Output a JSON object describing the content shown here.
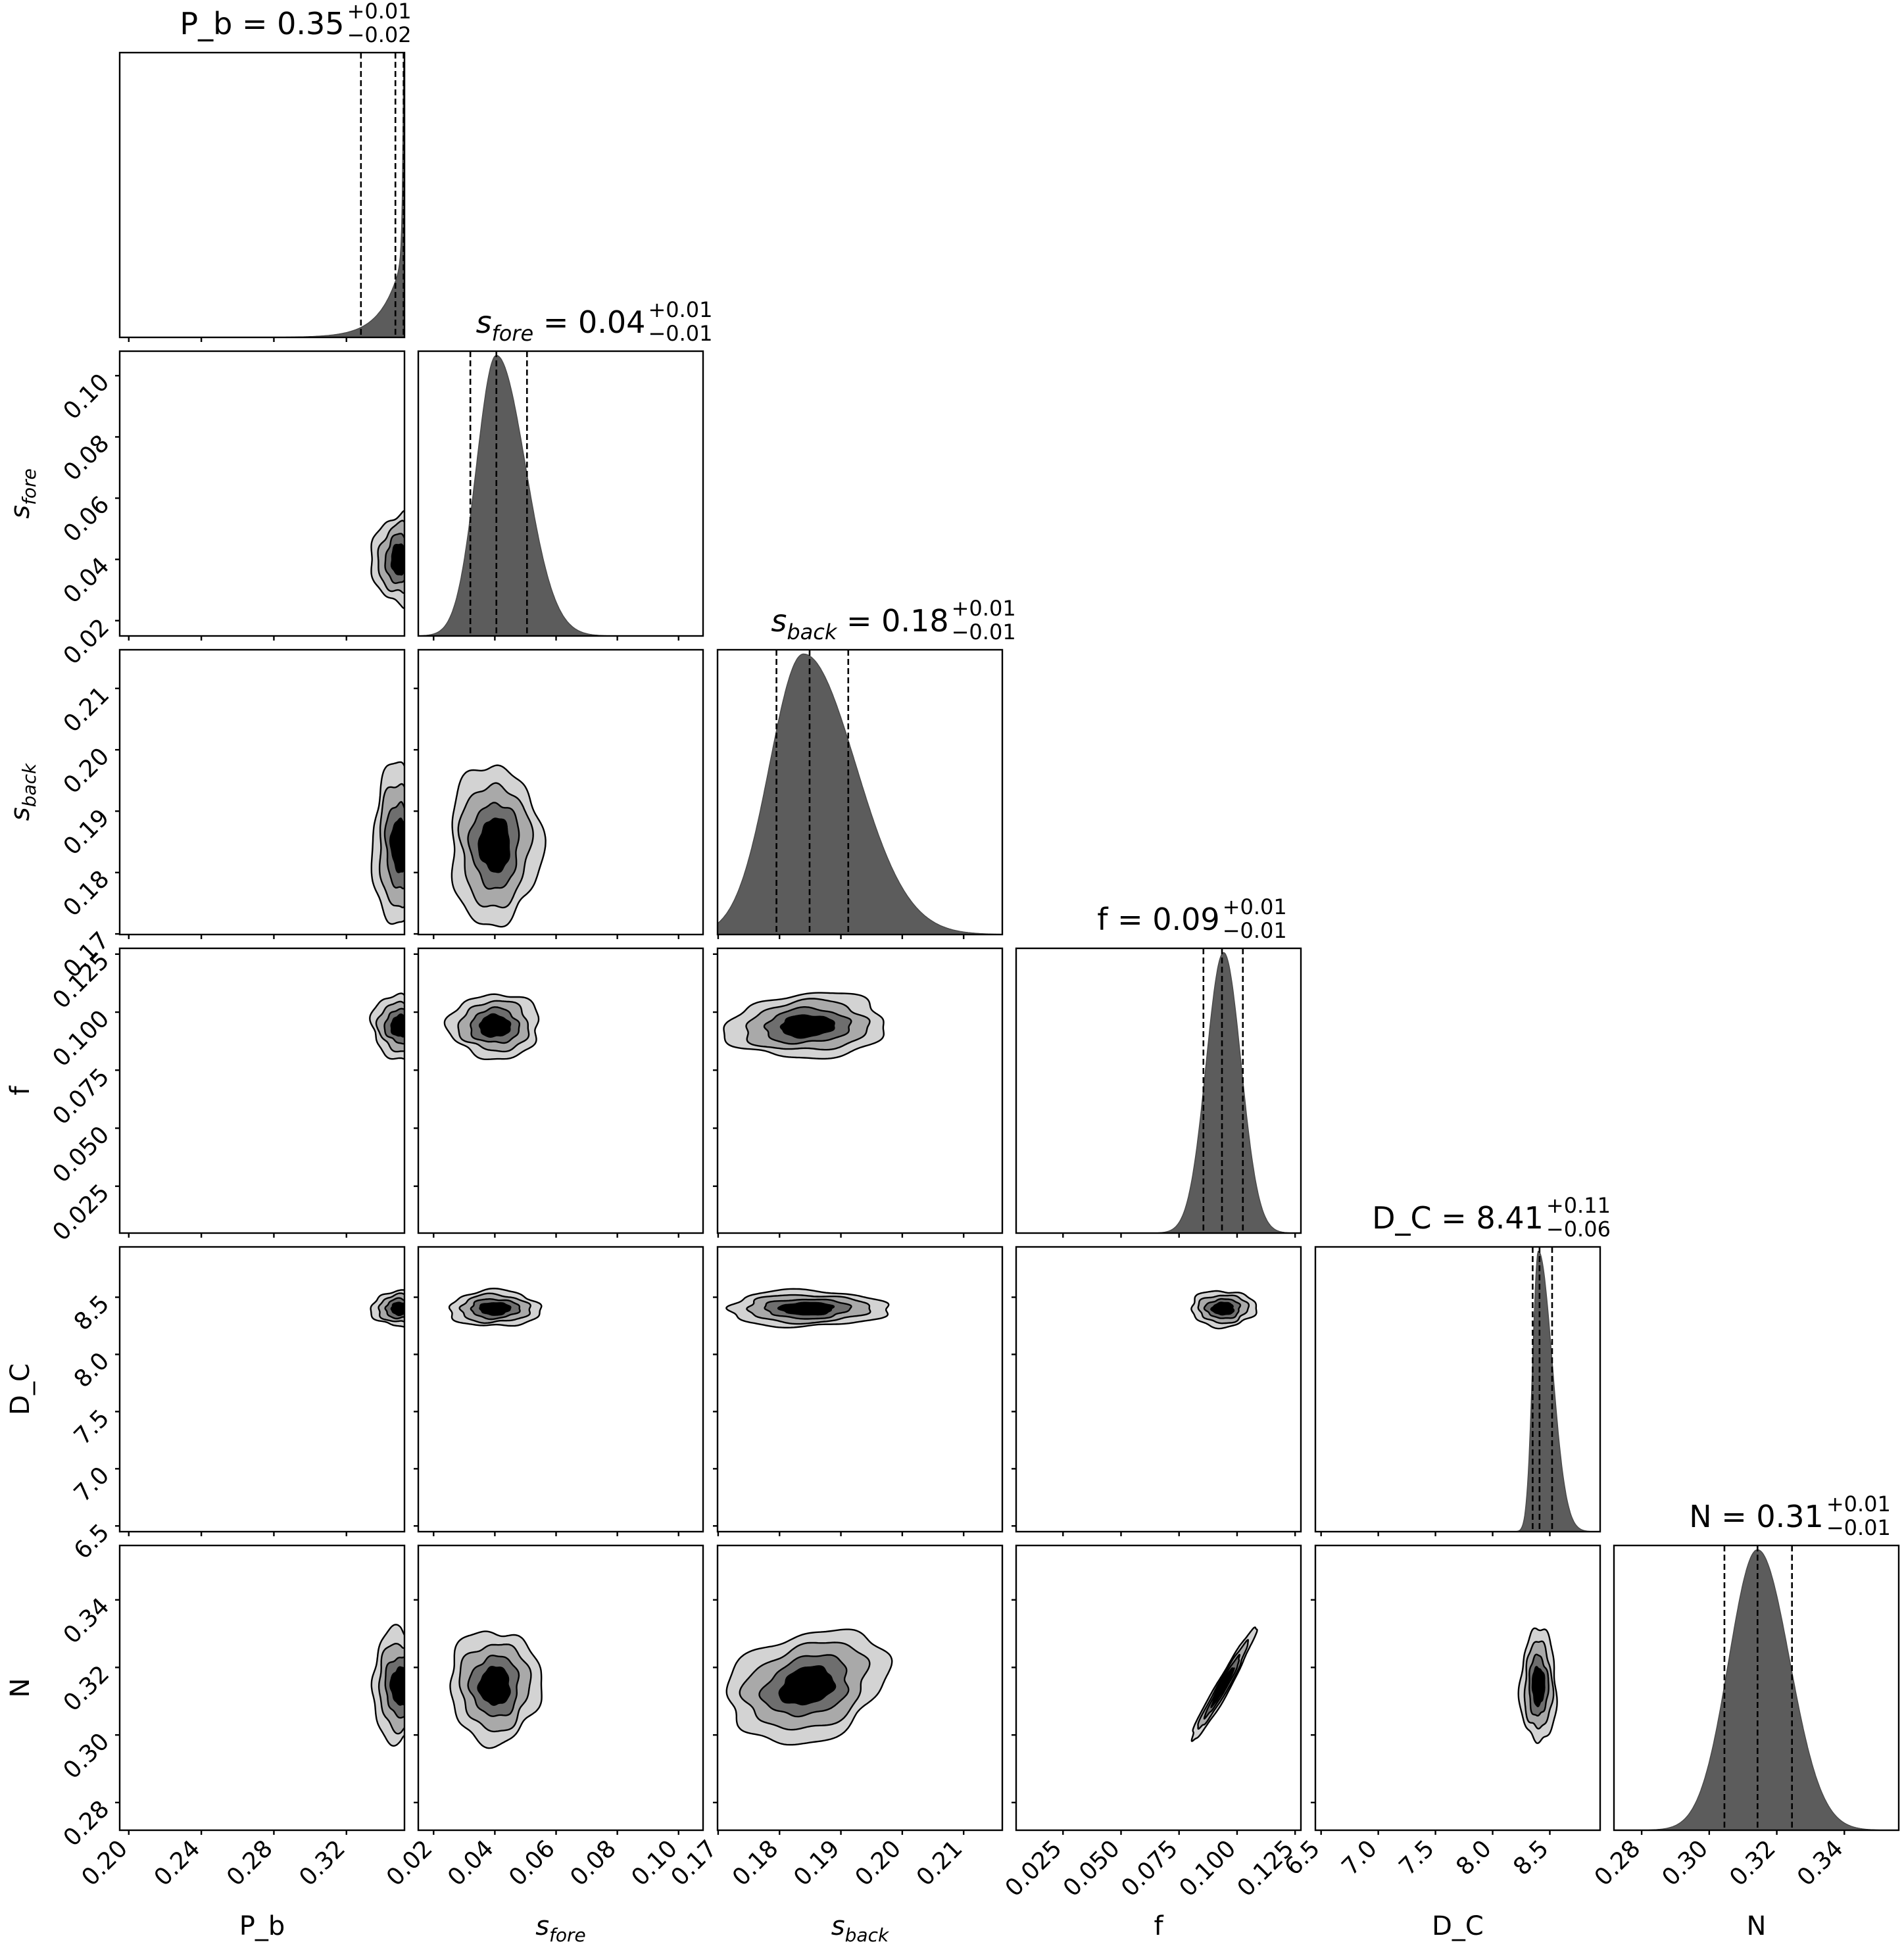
{
  "chart_data": {
    "type": "corner",
    "params": [
      {
        "key": "P_b",
        "label": "P_b",
        "label_sub": "",
        "title_head": "P_b = ",
        "value": "0.35",
        "plus": "+0.01",
        "minus": "−0.02",
        "range": [
          0.195,
          0.352
        ],
        "ticks": [
          0.2,
          0.24,
          0.28,
          0.32
        ],
        "tick_labels": [
          "0.20",
          "0.24",
          "0.28",
          "0.32"
        ],
        "quantiles": [
          0.328,
          0.347,
          0.3515
        ],
        "center": 0.35,
        "hist": {
          "peak": 0.3515,
          "sl": 0.011,
          "sr": 0.0005,
          "sk": "expL"
        }
      },
      {
        "key": "s_fore",
        "label": "s",
        "label_sub": "fore",
        "title_head": "s",
        "value": "0.04",
        "plus": "+0.01",
        "minus": "−0.01",
        "range": [
          0.015,
          0.108
        ],
        "ticks": [
          0.02,
          0.04,
          0.06,
          0.08,
          0.1
        ],
        "tick_labels": [
          "0.02",
          "0.04",
          "0.06",
          "0.08",
          "0.10"
        ],
        "quantiles": [
          0.032,
          0.0405,
          0.0505
        ],
        "center": 0.04,
        "hist": {
          "peak": 0.0405,
          "sl": 0.0065,
          "sr": 0.0095
        }
      },
      {
        "key": "s_back",
        "label": "s",
        "label_sub": "back",
        "title_head": "s",
        "value": "0.18",
        "plus": "+0.01",
        "minus": "−0.01",
        "range": [
          0.1699,
          0.2163
        ],
        "ticks": [
          0.17,
          0.18,
          0.19,
          0.2,
          0.21
        ],
        "tick_labels": [
          "0.17",
          "0.18",
          "0.19",
          "0.20",
          "0.21"
        ],
        "quantiles": [
          0.1795,
          0.1849,
          0.1912
        ],
        "center": 0.1845,
        "hist": {
          "peak": 0.1839,
          "sl": 0.0055,
          "sr": 0.0085
        }
      },
      {
        "key": "f",
        "label": "f",
        "label_sub": "",
        "title_head": "f = ",
        "value": "0.09",
        "plus": "+0.01",
        "minus": "−0.01",
        "range": [
          0.0048,
          0.1275
        ],
        "ticks": [
          0.025,
          0.05,
          0.075,
          0.1,
          0.125
        ],
        "tick_labels": [
          "0.025",
          "0.050",
          "0.075",
          "0.100",
          "0.125"
        ],
        "quantiles": [
          0.0855,
          0.0935,
          0.1025
        ],
        "center": 0.094,
        "hist": {
          "peak": 0.0942,
          "sl": 0.0075,
          "sr": 0.0075
        }
      },
      {
        "key": "D_C",
        "label": "D_C",
        "label_sub": "",
        "title_head": "D_C = ",
        "value": "8.41",
        "plus": "+0.11",
        "minus": "−0.06",
        "range": [
          6.45,
          8.94
        ],
        "ticks": [
          6.5,
          7.0,
          7.5,
          8.0,
          8.5
        ],
        "tick_labels": [
          "6.5",
          "7.0",
          "7.5",
          "8.0",
          "8.5"
        ],
        "quantiles": [
          8.35,
          8.41,
          8.52
        ],
        "center": 8.4,
        "hist": {
          "peak": 8.4,
          "sl": 0.05,
          "sr": 0.12
        }
      },
      {
        "key": "N",
        "label": "N",
        "label_sub": "",
        "title_head": "N = ",
        "value": "0.31",
        "plus": "+0.01",
        "minus": "−0.01",
        "range": [
          0.2718,
          0.3561
        ],
        "ticks": [
          0.28,
          0.3,
          0.32,
          0.34
        ],
        "tick_labels": [
          "0.28",
          "0.30",
          "0.32",
          "0.34"
        ],
        "quantiles": [
          0.3045,
          0.3143,
          0.3245
        ],
        "center": 0.3145,
        "hist": {
          "peak": 0.3143,
          "sl": 0.0085,
          "sr": 0.0095
        }
      }
    ],
    "contour_levels": [
      1.0,
      1.6,
      2.3,
      3.0
    ],
    "contour_shades": [
      "#d3d3d3",
      "#a9a9a9",
      "#6e6e6e",
      "#000000"
    ],
    "correlations": {
      "3-5": 0.97,
      "2-5": 0.25,
      "2-3": 0.1
    }
  }
}
